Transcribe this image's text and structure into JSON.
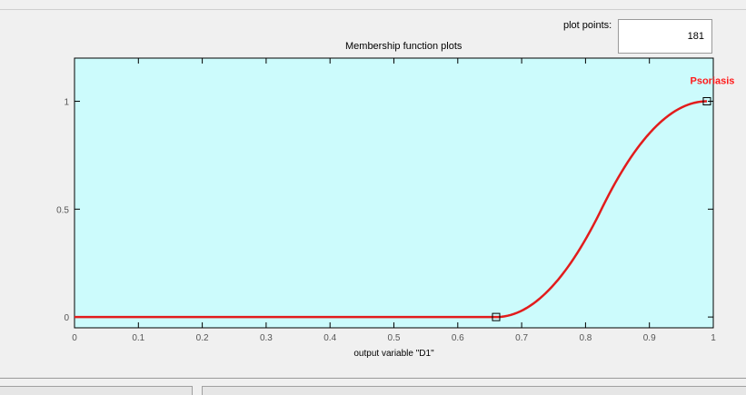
{
  "plot_points": {
    "label": "plot points:",
    "value": "181"
  },
  "plot": {
    "title": "Membership function plots",
    "xlabel": "output variable \"D1\"",
    "background_color": "#ccfbfc",
    "curve_color": "#e21c1c",
    "label_color": "#ff1a1a"
  },
  "chart_data": {
    "type": "line",
    "title": "Membership function plots",
    "xlabel": "output variable \"D1\"",
    "ylabel": "",
    "xlim": [
      0,
      1
    ],
    "ylim": [
      -0.05,
      1.2
    ],
    "x_ticks": [
      "0",
      "0.1",
      "0.2",
      "0.3",
      "0.4",
      "0.5",
      "0.6",
      "0.7",
      "0.8",
      "0.9",
      "1"
    ],
    "y_ticks": [
      "0",
      "0.5",
      "1"
    ],
    "grid": false,
    "series": [
      {
        "name": "Psoriasis",
        "function": "smf",
        "params": [
          0.66,
          0.99
        ],
        "x": [
          0,
          0.1,
          0.2,
          0.3,
          0.4,
          0.5,
          0.6,
          0.66,
          0.7,
          0.75,
          0.8,
          0.825,
          0.85,
          0.9,
          0.95,
          0.99,
          1
        ],
        "values": [
          0,
          0,
          0,
          0,
          0,
          0,
          0,
          0,
          0.03,
          0.16,
          0.39,
          0.525,
          0.65,
          0.86,
          0.97,
          1,
          1
        ]
      }
    ],
    "markers": [
      {
        "x": 0.66,
        "y": 0
      },
      {
        "x": 0.99,
        "y": 1
      }
    ]
  }
}
